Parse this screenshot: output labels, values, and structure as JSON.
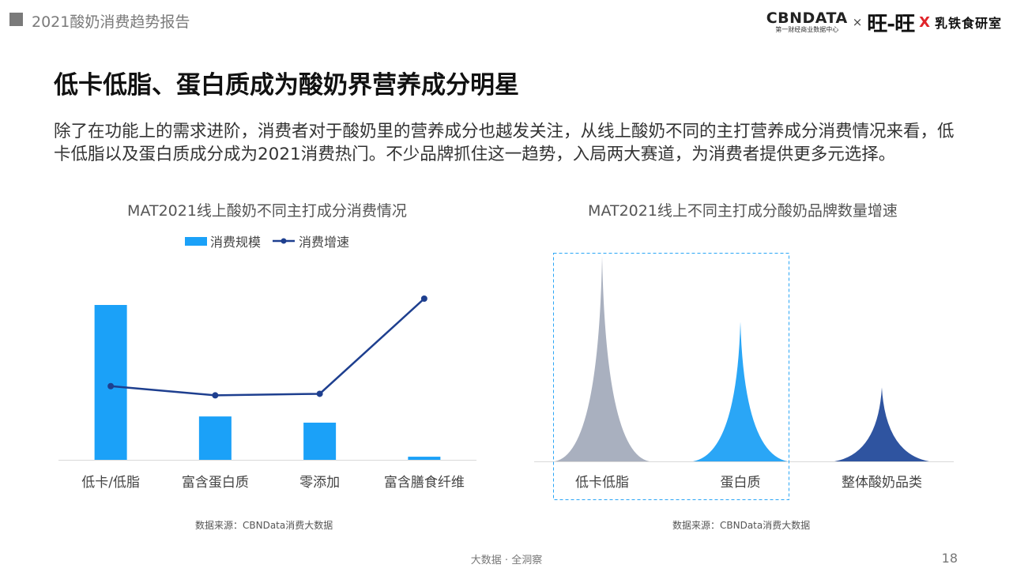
{
  "header": {
    "report_title": "2021酸奶消费趋势报告",
    "logos": {
      "cbndata": "CBNDATA",
      "cbndata_sub": "第一财经商业数据中心",
      "times1": "×",
      "wangwang": "旺-旺",
      "times2": "X",
      "lab": "乳铁食研室"
    }
  },
  "main_title": "低卡低脂、蛋白质成为酸奶界营养成分明星",
  "intro": "除了在功能上的需求进阶，消费者对于酸奶里的营养成分也越发关注，从线上酸奶不同的主打营养成分消费情况来看，低卡低脂以及蛋白质成分成为2021消费热门。不少品牌抓住这一趋势，入局两大赛道，为消费者提供更多元选择。",
  "chart_data": [
    {
      "type": "bar",
      "title": "MAT2021线上酸奶不同主打成分消费情况",
      "categories": [
        "低卡/低脂",
        "富含蛋白质",
        "零添加",
        "富含膳食纤维"
      ],
      "series": [
        {
          "name": "消费规模",
          "type": "bar",
          "values": [
            100,
            28,
            24,
            2
          ]
        },
        {
          "name": "消费增速",
          "type": "line",
          "values": [
            48,
            42,
            43,
            105
          ]
        }
      ],
      "source": "数据来源：CBNData消费大数据",
      "colors": {
        "bar": "#1ba1f8",
        "line": "#1e3f8f"
      }
    },
    {
      "type": "area",
      "title": "MAT2021线上不同主打成分酸奶品牌数量增速",
      "categories": [
        "低卡低脂",
        "蛋白质",
        "整体酸奶品类"
      ],
      "values": [
        100,
        68,
        36
      ],
      "highlight": [
        "低卡低脂",
        "蛋白质"
      ],
      "source": "数据来源：CBNData消费大数据",
      "colors": [
        "#a9b0bf",
        "#2aa6f6",
        "#2f54a0"
      ]
    }
  ],
  "footer": {
    "text": "大数据 · 全洞察",
    "page": "18"
  }
}
